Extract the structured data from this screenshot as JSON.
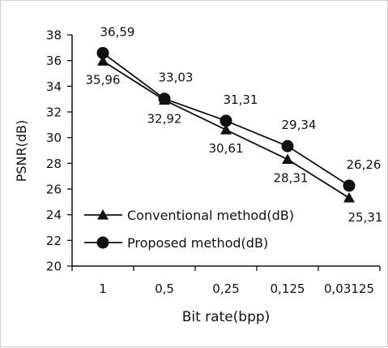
{
  "chart_data": {
    "type": "line",
    "categories": [
      "1",
      "0,5",
      "0,25",
      "0,125",
      "0,03125"
    ],
    "xlabel": "Bit rate(bpp)",
    "ylabel": "PSNR(dB)",
    "ylim": [
      20,
      38
    ],
    "ytick_step": 2,
    "yticks": [
      "20",
      "22",
      "24",
      "26",
      "28",
      "30",
      "32",
      "34",
      "36",
      "38"
    ],
    "grid": false,
    "legend_placement": "center-left",
    "series": [
      {
        "name": "Conventional method(dB)",
        "marker": "triangle",
        "color": "#111111",
        "values": [
          35.96,
          32.92,
          30.61,
          28.31,
          25.31
        ],
        "labels": [
          "35,96",
          "32,92",
          "30,61",
          "28,31",
          "25,31"
        ]
      },
      {
        "name": "Proposed method(dB)",
        "marker": "circle",
        "color": "#111111",
        "values": [
          36.59,
          33.03,
          31.31,
          29.34,
          26.26
        ],
        "labels": [
          "36,59",
          "33,03",
          "31,31",
          "29,34",
          "26,26"
        ]
      }
    ]
  }
}
